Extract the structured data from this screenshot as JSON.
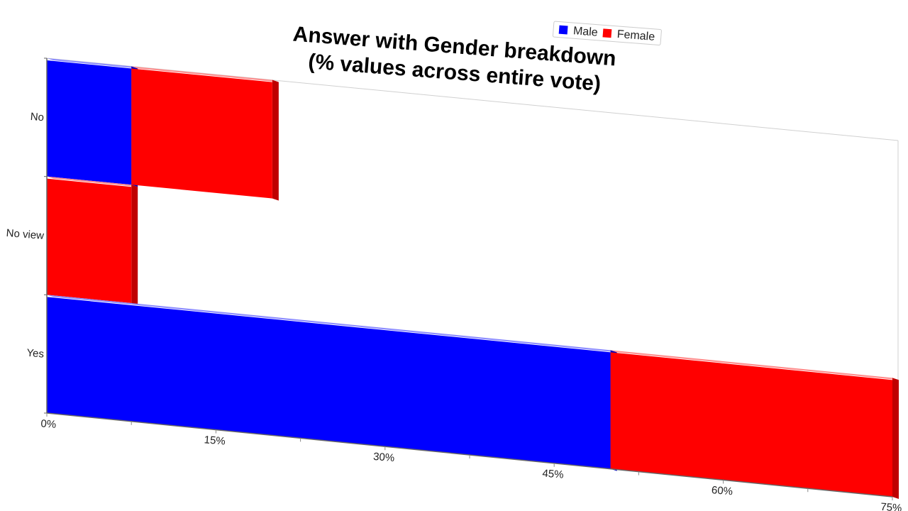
{
  "chart_data": {
    "type": "bar",
    "orientation": "horizontal",
    "stacked": true,
    "title": [
      "Answer with Gender breakdown",
      "(% values across entire vote)"
    ],
    "categories": [
      "No",
      "No view",
      "Yes"
    ],
    "series": [
      {
        "name": "Male",
        "color": "#0000ff",
        "values": [
          7.5,
          0,
          50
        ]
      },
      {
        "name": "Female",
        "color": "#ff0000",
        "values": [
          12.5,
          7.5,
          25
        ]
      }
    ],
    "xlim": [
      0,
      75
    ],
    "xticks": [
      0,
      15,
      30,
      45,
      60,
      75
    ],
    "xtick_labels": [
      "0%",
      "15%",
      "30%",
      "45%",
      "60%",
      "75%"
    ],
    "legend_position": "top-right",
    "grid": false,
    "perspective": "3d-tilted"
  }
}
